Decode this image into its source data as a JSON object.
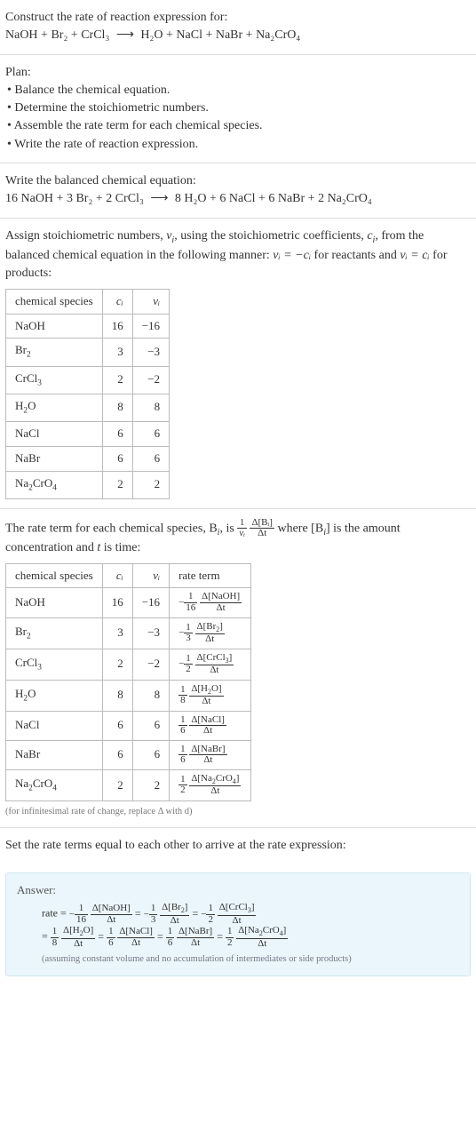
{
  "header": {
    "construct": "Construct the rate of reaction expression for:",
    "eqn_lhs": "NaOH + Br₂ + CrCl₃",
    "arrow": "⟶",
    "eqn_rhs": "H₂O + NaCl + NaBr + Na₂CrO₄"
  },
  "plan": {
    "title": "Plan:",
    "items": [
      "Balance the chemical equation.",
      "Determine the stoichiometric numbers.",
      "Assemble the rate term for each chemical species.",
      "Write the rate of reaction expression."
    ]
  },
  "balanced": {
    "intro": "Write the balanced chemical equation:",
    "lhs": "16 NaOH + 3 Br₂ + 2 CrCl₃",
    "arrow": "⟶",
    "rhs": "8 H₂O + 6 NaCl + 6 NaBr + 2 Na₂CrO₄"
  },
  "assign": {
    "text_a": "Assign stoichiometric numbers, ",
    "nu": "ν",
    "text_b": ", using the stoichiometric coefficients, ",
    "c": "c",
    "text_c": ", from the balanced chemical equation in the following manner: ",
    "rel1": "νᵢ = −cᵢ",
    "text_d": " for reactants and ",
    "rel2": "νᵢ = cᵢ",
    "text_e": " for products:"
  },
  "table1": {
    "headers": [
      "chemical species",
      "cᵢ",
      "νᵢ"
    ],
    "rows": [
      {
        "sp": "NaOH",
        "c": "16",
        "v": "−16"
      },
      {
        "sp": "Br₂",
        "c": "3",
        "v": "−3"
      },
      {
        "sp": "CrCl₃",
        "c": "2",
        "v": "−2"
      },
      {
        "sp": "H₂O",
        "c": "8",
        "v": "8"
      },
      {
        "sp": "NaCl",
        "c": "6",
        "v": "6"
      },
      {
        "sp": "NaBr",
        "c": "6",
        "v": "6"
      },
      {
        "sp": "Na₂CrO₄",
        "c": "2",
        "v": "2"
      }
    ]
  },
  "rateterm_intro": {
    "a": "The rate term for each chemical species, B",
    "b": ", is ",
    "frac1_num": "1",
    "frac1_den": "νᵢ",
    "frac2_num": "Δ[Bᵢ]",
    "frac2_den": "Δt",
    "c": " where [B",
    "d": "] is the amount concentration and ",
    "t": "t",
    "e": " is time:"
  },
  "table2": {
    "headers": [
      "chemical species",
      "cᵢ",
      "νᵢ",
      "rate term"
    ],
    "rows": [
      {
        "sp": "NaOH",
        "c": "16",
        "v": "−16",
        "neg": "−",
        "num": "1",
        "den": "16",
        "dnum": "Δ[NaOH]",
        "dden": "Δt"
      },
      {
        "sp": "Br₂",
        "c": "3",
        "v": "−3",
        "neg": "−",
        "num": "1",
        "den": "3",
        "dnum": "Δ[Br₂]",
        "dden": "Δt"
      },
      {
        "sp": "CrCl₃",
        "c": "2",
        "v": "−2",
        "neg": "−",
        "num": "1",
        "den": "2",
        "dnum": "Δ[CrCl₃]",
        "dden": "Δt"
      },
      {
        "sp": "H₂O",
        "c": "8",
        "v": "8",
        "neg": "",
        "num": "1",
        "den": "8",
        "dnum": "Δ[H₂O]",
        "dden": "Δt"
      },
      {
        "sp": "NaCl",
        "c": "6",
        "v": "6",
        "neg": "",
        "num": "1",
        "den": "6",
        "dnum": "Δ[NaCl]",
        "dden": "Δt"
      },
      {
        "sp": "NaBr",
        "c": "6",
        "v": "6",
        "neg": "",
        "num": "1",
        "den": "6",
        "dnum": "Δ[NaBr]",
        "dden": "Δt"
      },
      {
        "sp": "Na₂CrO₄",
        "c": "2",
        "v": "2",
        "neg": "",
        "num": "1",
        "den": "2",
        "dnum": "Δ[Na₂CrO₄]",
        "dden": "Δt"
      }
    ]
  },
  "infinitesimal_note": "(for infinitesimal rate of change, replace Δ with d)",
  "setequal": "Set the rate terms equal to each other to arrive at the rate expression:",
  "answer": {
    "label": "Answer:",
    "rate_label": "rate = ",
    "line1": [
      {
        "neg": "−",
        "n": "1",
        "d": "16",
        "dn": "Δ[NaOH]",
        "dd": "Δt"
      },
      {
        "neg": "−",
        "n": "1",
        "d": "3",
        "dn": "Δ[Br₂]",
        "dd": "Δt"
      },
      {
        "neg": "−",
        "n": "1",
        "d": "2",
        "dn": "Δ[CrCl₃]",
        "dd": "Δt"
      }
    ],
    "line2": [
      {
        "neg": "",
        "n": "1",
        "d": "8",
        "dn": "Δ[H₂O]",
        "dd": "Δt"
      },
      {
        "neg": "",
        "n": "1",
        "d": "6",
        "dn": "Δ[NaCl]",
        "dd": "Δt"
      },
      {
        "neg": "",
        "n": "1",
        "d": "6",
        "dn": "Δ[NaBr]",
        "dd": "Δt"
      },
      {
        "neg": "",
        "n": "1",
        "d": "2",
        "dn": "Δ[Na₂CrO₄]",
        "dd": "Δt"
      }
    ],
    "eq": " = ",
    "assume": "(assuming constant volume and no accumulation of intermediates or side products)"
  },
  "style": {
    "bg": "#ffffff",
    "answer_bg": "#eaf6fb",
    "answer_border": "#cfe8f2",
    "rule": "#dddddd",
    "cell_border": "#bbbbbb",
    "note_color": "#777777"
  }
}
